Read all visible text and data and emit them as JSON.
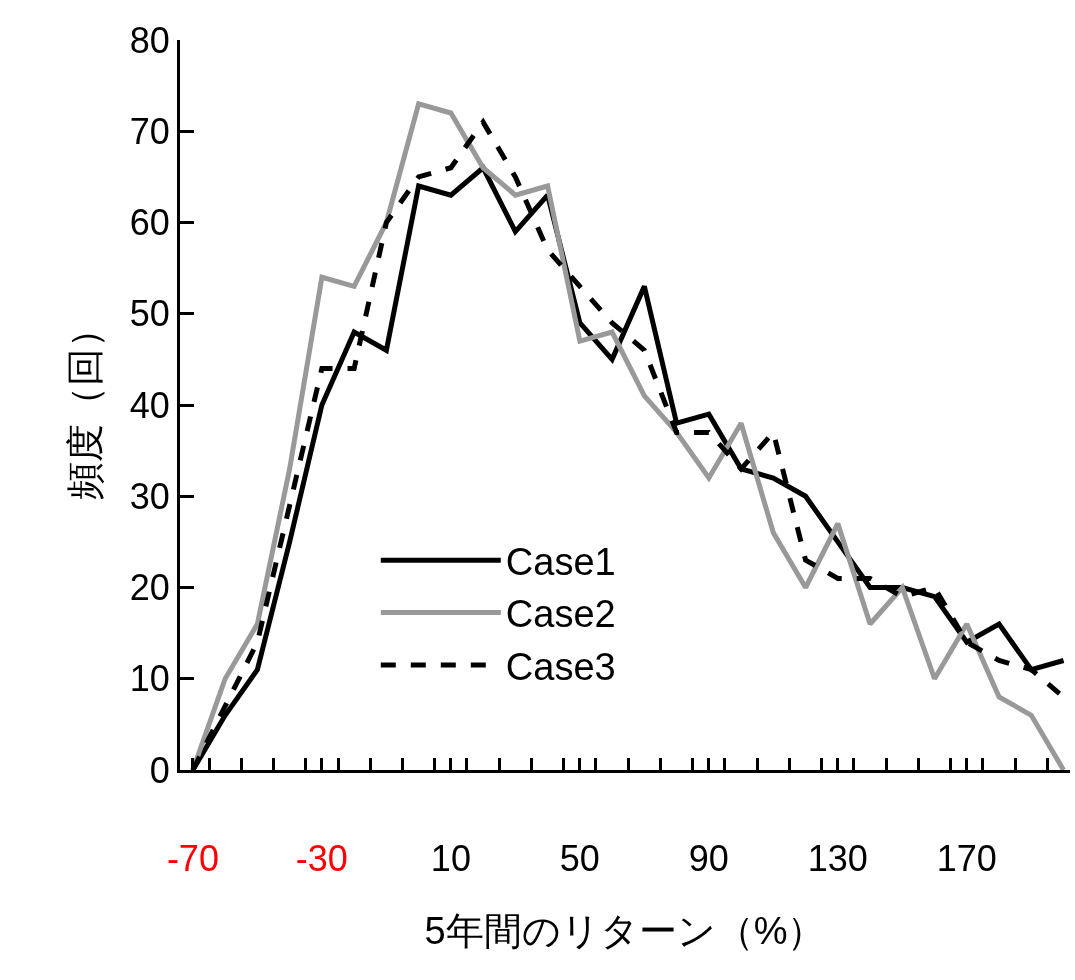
{
  "chart_data": {
    "type": "line",
    "xlabel": "5年間のリターン（%）",
    "ylabel": "頻度（回）",
    "x": [
      -70,
      -60,
      -50,
      -40,
      -30,
      -20,
      -10,
      0,
      10,
      20,
      30,
      40,
      50,
      60,
      70,
      80,
      90,
      100,
      110,
      120,
      130,
      140,
      150,
      160,
      170,
      180,
      190,
      200
    ],
    "series": [
      {
        "name": "Case1",
        "color": "#000000",
        "line_style": "solid",
        "values": [
          0,
          6,
          11,
          25,
          40,
          48,
          46,
          64,
          63,
          66,
          59,
          63,
          49,
          45,
          53,
          38,
          39,
          33,
          32,
          30,
          25,
          20,
          20,
          19,
          14,
          16,
          11,
          12
        ]
      },
      {
        "name": "Case2",
        "color": "#999999",
        "line_style": "solid",
        "values": [
          0,
          10,
          16,
          33,
          54,
          53,
          60,
          73,
          72,
          66,
          63,
          64,
          47,
          48,
          41,
          37,
          32,
          38,
          26,
          20,
          27,
          16,
          20,
          10,
          16,
          8,
          6,
          0
        ]
      },
      {
        "name": "Case3",
        "color": "#000000",
        "line_style": "dashed",
        "values": [
          0,
          7,
          14,
          29,
          44,
          44,
          60,
          65,
          66,
          71,
          65,
          57,
          53,
          49,
          46,
          37,
          37,
          33,
          37,
          23,
          21,
          21,
          19,
          20,
          14,
          12,
          11,
          8
        ]
      }
    ],
    "xlim": [
      -74,
      202
    ],
    "xticks": [
      {
        "value": -70,
        "label": "-70"
      },
      {
        "value": -30,
        "label": "-30"
      },
      10,
      50,
      90,
      130,
      170,
      {
        "value": -65,
        "label": null
      },
      {
        "value": -55,
        "label": null
      },
      {
        "value": -45,
        "label": null
      },
      {
        "value": -35,
        "label": null
      },
      {
        "value": -25,
        "label": null
      },
      {
        "value": -15,
        "label": null
      },
      {
        "value": -5,
        "label": null
      },
      {
        "value": 5,
        "label": null
      },
      {
        "value": 15,
        "label": null
      },
      {
        "value": 25,
        "label": null
      },
      {
        "value": 35,
        "label": null
      },
      {
        "value": 45,
        "label": null
      },
      {
        "value": 55,
        "label": null
      },
      {
        "value": 65,
        "label": null
      },
      {
        "value": 75,
        "label": null
      },
      {
        "value": 85,
        "label": null
      },
      {
        "value": 95,
        "label": null
      },
      {
        "value": 105,
        "label": null
      },
      {
        "value": 115,
        "label": null
      },
      {
        "value": 125,
        "label": null
      },
      {
        "value": 135,
        "label": null
      },
      {
        "value": 145,
        "label": null
      },
      {
        "value": 155,
        "label": null
      },
      {
        "value": 165,
        "label": null
      },
      {
        "value": 175,
        "label": null
      },
      {
        "value": 185,
        "label": null
      },
      {
        "value": 195,
        "label": null
      }
    ],
    "ylim": [
      0,
      80
    ],
    "yticks": [
      0,
      10,
      20,
      30,
      40,
      50,
      60,
      70,
      80
    ],
    "legend": "center",
    "marker": "none"
  }
}
